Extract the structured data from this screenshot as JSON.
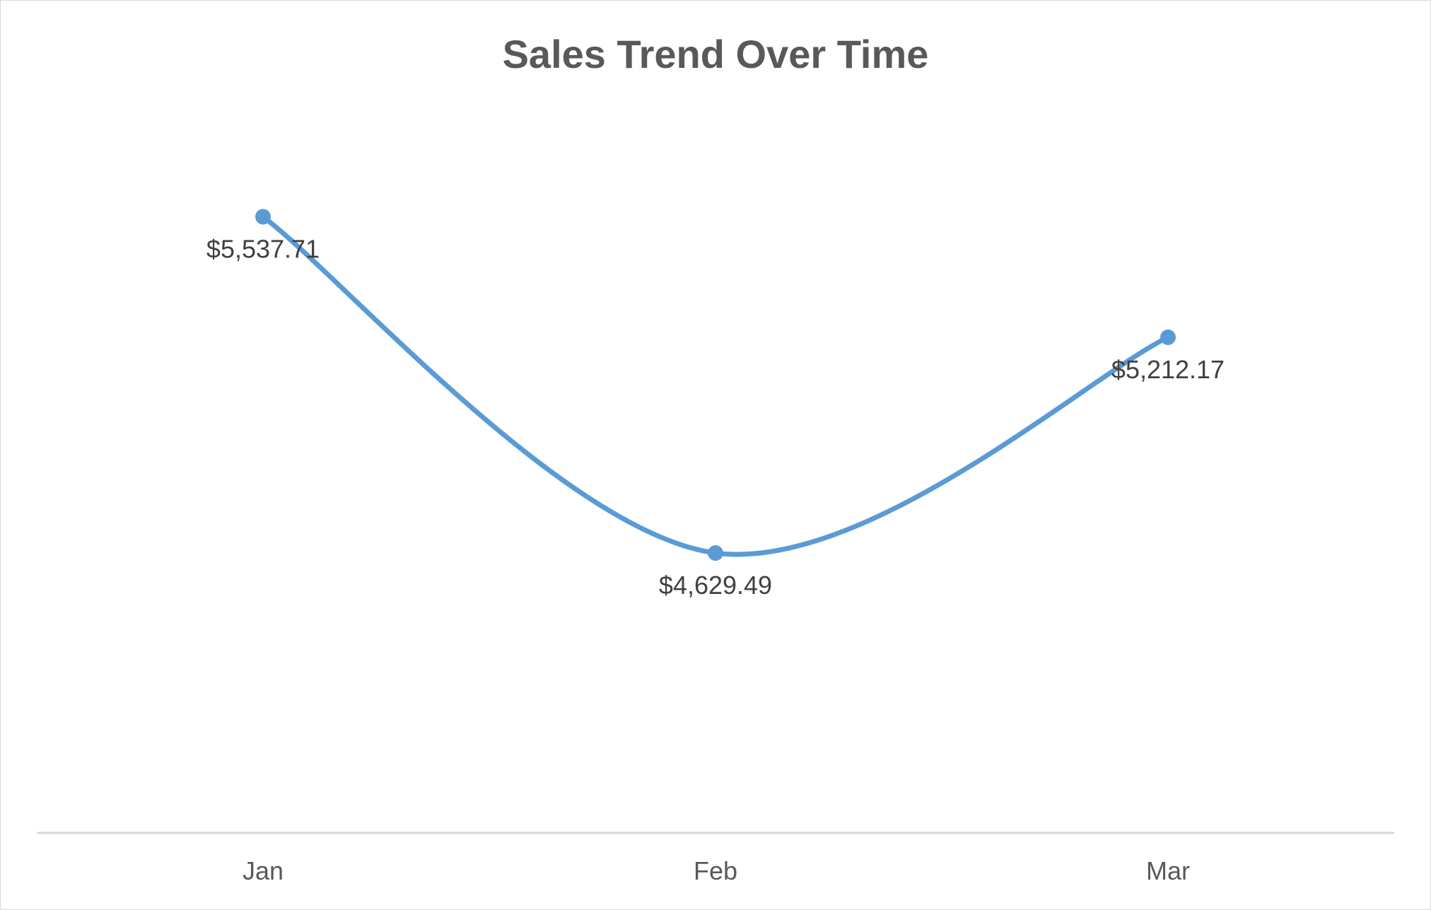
{
  "chart_data": {
    "type": "line",
    "title": "Sales Trend Over Time",
    "categories": [
      "Jan",
      "Feb",
      "Mar"
    ],
    "series": [
      {
        "values": [
          5537.71,
          4629.49,
          5212.17
        ],
        "labels": [
          "$5,537.71",
          "$4,629.49",
          "$5,212.17"
        ],
        "color": "#5b9bd5",
        "smooth": true,
        "markers": true
      }
    ],
    "xlabel": "",
    "ylabel": "",
    "ylim": [
      4000,
      6000
    ],
    "grid": false,
    "legend": "none",
    "axis_color": "#d9d9d9"
  }
}
